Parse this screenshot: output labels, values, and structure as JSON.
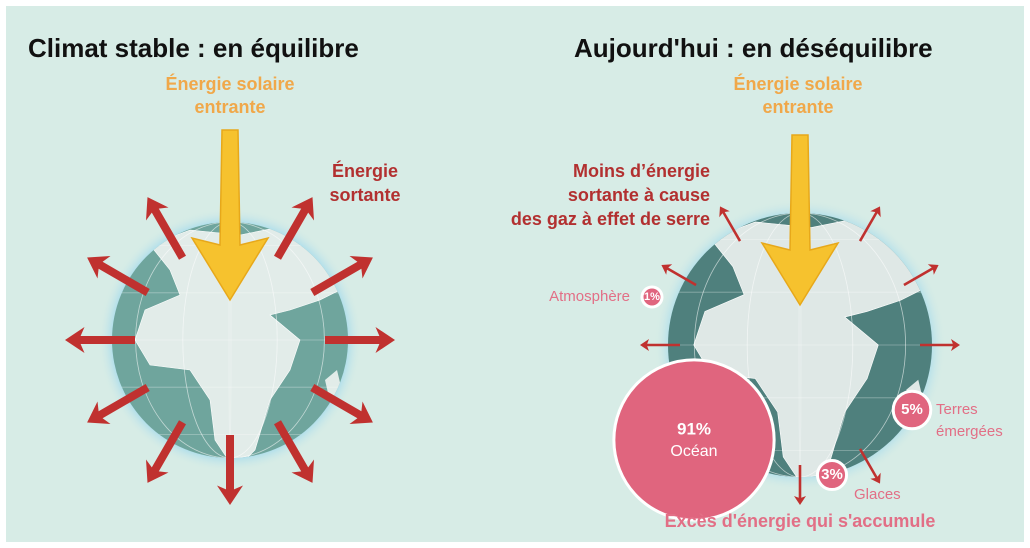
{
  "left": {
    "title": "Climat stable : en équilibre",
    "solar": [
      "Énergie solaire",
      "entrante"
    ],
    "outgoing": [
      "Énergie",
      "sortante"
    ]
  },
  "right": {
    "title": "Aujourd'hui : en déséquilibre",
    "solar": [
      "Énergie solaire",
      "entrante"
    ],
    "outgoing": [
      "Moins d’énergie",
      "sortante à cause",
      "des gaz à effet de serre"
    ],
    "reservoirs": [
      {
        "name": [
          "Atmosphère"
        ],
        "value": 1,
        "label": "1%"
      },
      {
        "name": [
          "Océan"
        ],
        "value": 91,
        "label": "91%"
      },
      {
        "name": [
          "Terres",
          "émergées"
        ],
        "value": 5,
        "label": "5%"
      },
      {
        "name": [
          "Glaces"
        ],
        "value": 3,
        "label": "3%"
      }
    ],
    "footer": "Excès d'énergie qui s'accumule"
  }
}
